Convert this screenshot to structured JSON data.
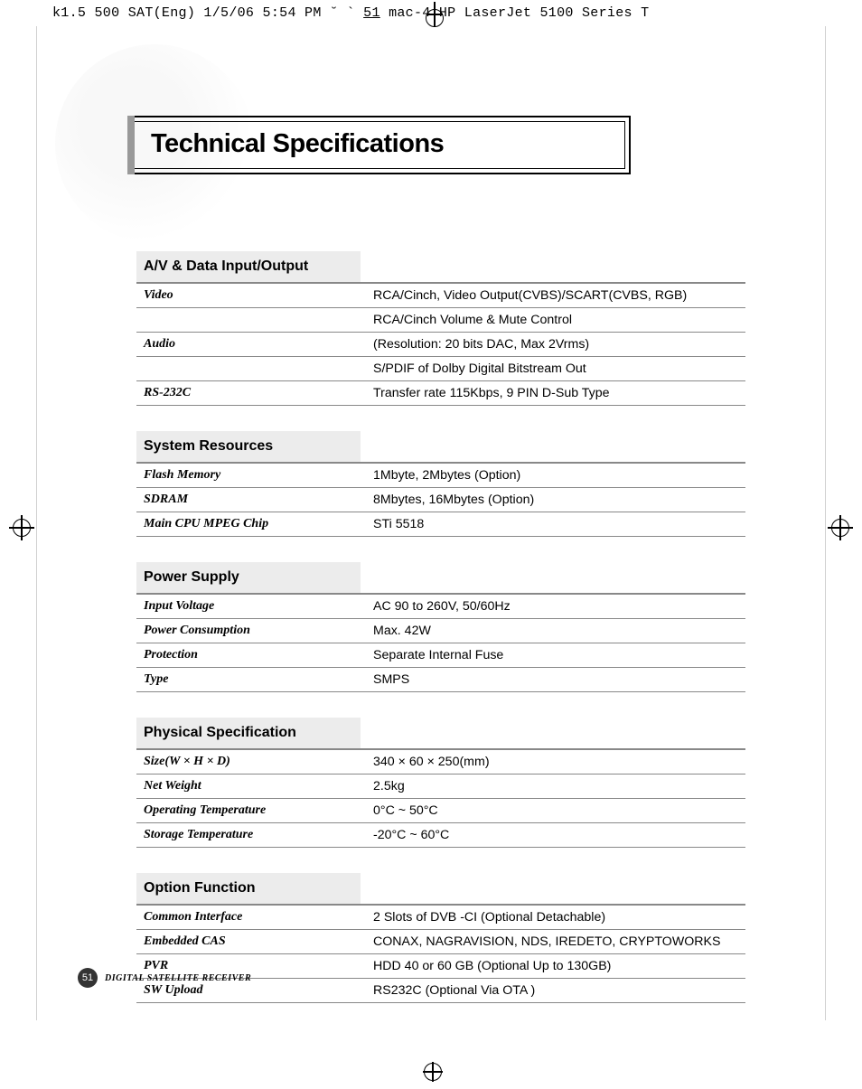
{
  "header": {
    "left": "k1.5 500 SAT(Eng)  1/5/06 5:54 PM  ˘   ` ",
    "mid": "51",
    "right": " mac-4 HP LaserJet 5100 Series  T"
  },
  "title": "Technical Specifications",
  "sections": [
    {
      "heading": "A/V & Data Input/Output",
      "rows": [
        {
          "label": "Video",
          "value": "RCA/Cinch, Video Output(CVBS)/SCART(CVBS, RGB)"
        },
        {
          "label": "",
          "value": "RCA/Cinch Volume & Mute Control"
        },
        {
          "label": "Audio",
          "value": "(Resolution: 20 bits DAC, Max 2Vrms)"
        },
        {
          "label": "",
          "value": "S/PDIF of Dolby Digital Bitstream Out"
        },
        {
          "label": "RS-232C",
          "value": "Transfer rate 115Kbps, 9 PIN D-Sub Type"
        }
      ]
    },
    {
      "heading": "System Resources",
      "rows": [
        {
          "label": "Flash Memory",
          "value": "1Mbyte, 2Mbytes (Option)"
        },
        {
          "label": "SDRAM",
          "value": "8Mbytes, 16Mbytes (Option)"
        },
        {
          "label": "Main CPU MPEG Chip",
          "value": "STi 5518"
        }
      ]
    },
    {
      "heading": "Power Supply",
      "rows": [
        {
          "label": "Input Voltage",
          "value": "AC 90 to 260V, 50/60Hz"
        },
        {
          "label": "Power Consumption",
          "value": "Max. 42W"
        },
        {
          "label": "Protection",
          "value": "Separate Internal Fuse"
        },
        {
          "label": "Type",
          "value": "SMPS"
        }
      ]
    },
    {
      "heading": "Physical Specification",
      "rows": [
        {
          "label": "Size(W × H × D)",
          "value": "340 × 60 × 250(mm)"
        },
        {
          "label": "Net Weight",
          "value": "2.5kg"
        },
        {
          "label": "Operating Temperature",
          "value": "0°C ~ 50°C"
        },
        {
          "label": "Storage Temperature",
          "value": "-20°C ~ 60°C"
        }
      ]
    },
    {
      "heading": "Option Function",
      "rows": [
        {
          "label": "Common Interface",
          "value": "2 Slots of DVB -CI (Optional Detachable)"
        },
        {
          "label": "Embedded CAS",
          "value": "CONAX, NAGRAVISION, NDS, IREDETO, CRYPTOWORKS"
        },
        {
          "label": "PVR",
          "value": "HDD 40 or 60 GB (Optional Up to 130GB)"
        },
        {
          "label": "SW Upload",
          "value": "RS232C (Optional Via OTA )"
        }
      ]
    }
  ],
  "footer": {
    "page": "51",
    "text": "DIGITAL SATELLITE RECEIVER"
  }
}
